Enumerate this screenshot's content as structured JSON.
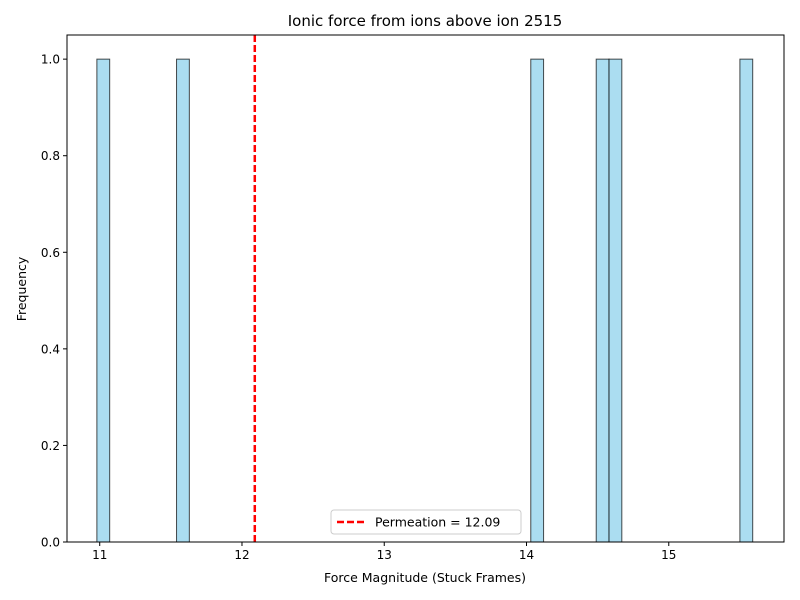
{
  "chart_data": {
    "type": "bar",
    "title": "Ionic force from ions above ion 2515",
    "xlabel": "Force Magnitude (Stuck Frames)",
    "ylabel": "Frequency",
    "xlim": [
      10.77,
      15.81
    ],
    "ylim": [
      0,
      1.05
    ],
    "xticks": [
      11,
      12,
      13,
      14,
      15
    ],
    "yticks": [
      0.0,
      0.2,
      0.4,
      0.6,
      0.8,
      1.0
    ],
    "xtick_labels": [
      "11",
      "12",
      "13",
      "14",
      "15"
    ],
    "ytick_labels": [
      "0.0",
      "0.2",
      "0.4",
      "0.6",
      "0.8",
      "1.0"
    ],
    "bars": [
      {
        "x0": 10.98,
        "x1": 11.07,
        "value": 1
      },
      {
        "x0": 11.54,
        "x1": 11.63,
        "value": 1
      },
      {
        "x0": 14.03,
        "x1": 14.12,
        "value": 1
      },
      {
        "x0": 14.49,
        "x1": 14.58,
        "value": 1
      },
      {
        "x0": 14.58,
        "x1": 14.67,
        "value": 1
      },
      {
        "x0": 15.5,
        "x1": 15.59,
        "value": 1
      }
    ],
    "bar_color": "#87CEEB",
    "bar_edge_color": "#000000",
    "reference_line": {
      "x": 12.09,
      "label": "Permeation = 12.09",
      "color": "#ff0000",
      "style": "dashed"
    },
    "legend_position": "lower-center",
    "grid": false
  }
}
